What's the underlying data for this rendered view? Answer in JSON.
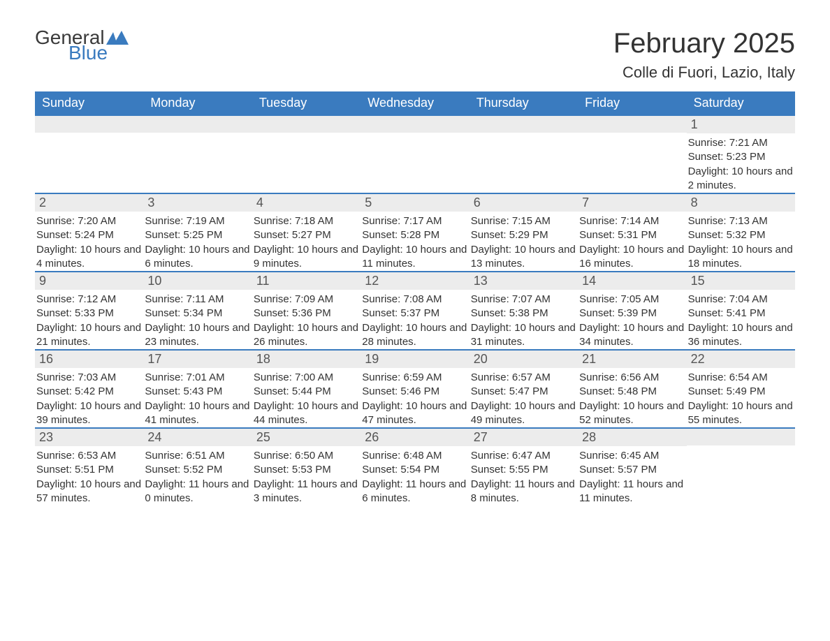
{
  "brand": {
    "name1": "General",
    "name2": "Blue",
    "accent": "#3a7bbf"
  },
  "title": "February 2025",
  "location": "Colle di Fuori, Lazio, Italy",
  "style": {
    "header_bg": "#3a7bbf",
    "header_text": "#ffffff",
    "daynum_bg": "#ececec",
    "daynum_border": "#3a7bbf",
    "page_bg": "#ffffff",
    "body_text": "#333333",
    "title_fontsize": 40,
    "location_fontsize": 22,
    "dayhead_fontsize": 18,
    "info_fontsize": 15
  },
  "day_headers": [
    "Sunday",
    "Monday",
    "Tuesday",
    "Wednesday",
    "Thursday",
    "Friday",
    "Saturday"
  ],
  "weeks": [
    [
      {
        "day": "",
        "sunrise": "",
        "sunset": "",
        "daylight": ""
      },
      {
        "day": "",
        "sunrise": "",
        "sunset": "",
        "daylight": ""
      },
      {
        "day": "",
        "sunrise": "",
        "sunset": "",
        "daylight": ""
      },
      {
        "day": "",
        "sunrise": "",
        "sunset": "",
        "daylight": ""
      },
      {
        "day": "",
        "sunrise": "",
        "sunset": "",
        "daylight": ""
      },
      {
        "day": "",
        "sunrise": "",
        "sunset": "",
        "daylight": ""
      },
      {
        "day": "1",
        "sunrise": "Sunrise: 7:21 AM",
        "sunset": "Sunset: 5:23 PM",
        "daylight": "Daylight: 10 hours and 2 minutes."
      }
    ],
    [
      {
        "day": "2",
        "sunrise": "Sunrise: 7:20 AM",
        "sunset": "Sunset: 5:24 PM",
        "daylight": "Daylight: 10 hours and 4 minutes."
      },
      {
        "day": "3",
        "sunrise": "Sunrise: 7:19 AM",
        "sunset": "Sunset: 5:25 PM",
        "daylight": "Daylight: 10 hours and 6 minutes."
      },
      {
        "day": "4",
        "sunrise": "Sunrise: 7:18 AM",
        "sunset": "Sunset: 5:27 PM",
        "daylight": "Daylight: 10 hours and 9 minutes."
      },
      {
        "day": "5",
        "sunrise": "Sunrise: 7:17 AM",
        "sunset": "Sunset: 5:28 PM",
        "daylight": "Daylight: 10 hours and 11 minutes."
      },
      {
        "day": "6",
        "sunrise": "Sunrise: 7:15 AM",
        "sunset": "Sunset: 5:29 PM",
        "daylight": "Daylight: 10 hours and 13 minutes."
      },
      {
        "day": "7",
        "sunrise": "Sunrise: 7:14 AM",
        "sunset": "Sunset: 5:31 PM",
        "daylight": "Daylight: 10 hours and 16 minutes."
      },
      {
        "day": "8",
        "sunrise": "Sunrise: 7:13 AM",
        "sunset": "Sunset: 5:32 PM",
        "daylight": "Daylight: 10 hours and 18 minutes."
      }
    ],
    [
      {
        "day": "9",
        "sunrise": "Sunrise: 7:12 AM",
        "sunset": "Sunset: 5:33 PM",
        "daylight": "Daylight: 10 hours and 21 minutes."
      },
      {
        "day": "10",
        "sunrise": "Sunrise: 7:11 AM",
        "sunset": "Sunset: 5:34 PM",
        "daylight": "Daylight: 10 hours and 23 minutes."
      },
      {
        "day": "11",
        "sunrise": "Sunrise: 7:09 AM",
        "sunset": "Sunset: 5:36 PM",
        "daylight": "Daylight: 10 hours and 26 minutes."
      },
      {
        "day": "12",
        "sunrise": "Sunrise: 7:08 AM",
        "sunset": "Sunset: 5:37 PM",
        "daylight": "Daylight: 10 hours and 28 minutes."
      },
      {
        "day": "13",
        "sunrise": "Sunrise: 7:07 AM",
        "sunset": "Sunset: 5:38 PM",
        "daylight": "Daylight: 10 hours and 31 minutes."
      },
      {
        "day": "14",
        "sunrise": "Sunrise: 7:05 AM",
        "sunset": "Sunset: 5:39 PM",
        "daylight": "Daylight: 10 hours and 34 minutes."
      },
      {
        "day": "15",
        "sunrise": "Sunrise: 7:04 AM",
        "sunset": "Sunset: 5:41 PM",
        "daylight": "Daylight: 10 hours and 36 minutes."
      }
    ],
    [
      {
        "day": "16",
        "sunrise": "Sunrise: 7:03 AM",
        "sunset": "Sunset: 5:42 PM",
        "daylight": "Daylight: 10 hours and 39 minutes."
      },
      {
        "day": "17",
        "sunrise": "Sunrise: 7:01 AM",
        "sunset": "Sunset: 5:43 PM",
        "daylight": "Daylight: 10 hours and 41 minutes."
      },
      {
        "day": "18",
        "sunrise": "Sunrise: 7:00 AM",
        "sunset": "Sunset: 5:44 PM",
        "daylight": "Daylight: 10 hours and 44 minutes."
      },
      {
        "day": "19",
        "sunrise": "Sunrise: 6:59 AM",
        "sunset": "Sunset: 5:46 PM",
        "daylight": "Daylight: 10 hours and 47 minutes."
      },
      {
        "day": "20",
        "sunrise": "Sunrise: 6:57 AM",
        "sunset": "Sunset: 5:47 PM",
        "daylight": "Daylight: 10 hours and 49 minutes."
      },
      {
        "day": "21",
        "sunrise": "Sunrise: 6:56 AM",
        "sunset": "Sunset: 5:48 PM",
        "daylight": "Daylight: 10 hours and 52 minutes."
      },
      {
        "day": "22",
        "sunrise": "Sunrise: 6:54 AM",
        "sunset": "Sunset: 5:49 PM",
        "daylight": "Daylight: 10 hours and 55 minutes."
      }
    ],
    [
      {
        "day": "23",
        "sunrise": "Sunrise: 6:53 AM",
        "sunset": "Sunset: 5:51 PM",
        "daylight": "Daylight: 10 hours and 57 minutes."
      },
      {
        "day": "24",
        "sunrise": "Sunrise: 6:51 AM",
        "sunset": "Sunset: 5:52 PM",
        "daylight": "Daylight: 11 hours and 0 minutes."
      },
      {
        "day": "25",
        "sunrise": "Sunrise: 6:50 AM",
        "sunset": "Sunset: 5:53 PM",
        "daylight": "Daylight: 11 hours and 3 minutes."
      },
      {
        "day": "26",
        "sunrise": "Sunrise: 6:48 AM",
        "sunset": "Sunset: 5:54 PM",
        "daylight": "Daylight: 11 hours and 6 minutes."
      },
      {
        "day": "27",
        "sunrise": "Sunrise: 6:47 AM",
        "sunset": "Sunset: 5:55 PM",
        "daylight": "Daylight: 11 hours and 8 minutes."
      },
      {
        "day": "28",
        "sunrise": "Sunrise: 6:45 AM",
        "sunset": "Sunset: 5:57 PM",
        "daylight": "Daylight: 11 hours and 11 minutes."
      },
      {
        "day": "",
        "sunrise": "",
        "sunset": "",
        "daylight": ""
      }
    ]
  ]
}
